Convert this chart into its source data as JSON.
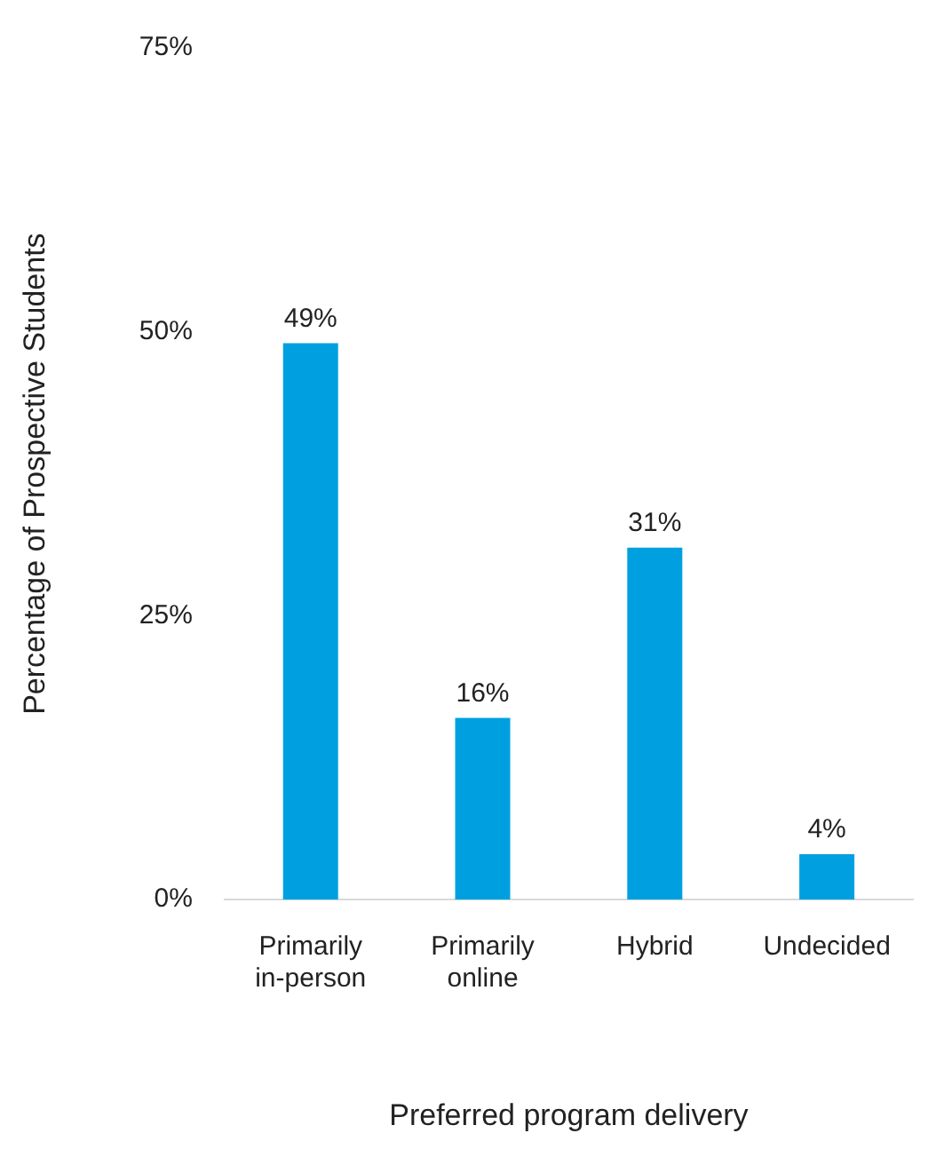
{
  "chart_data": {
    "type": "bar",
    "xlabel": "Preferred program delivery",
    "ylabel": "Percentage of Prospective Students",
    "categories": [
      "Primarily in-person",
      "Primarily online",
      "Hybrid",
      "Undecided"
    ],
    "values": [
      49,
      16,
      31,
      4
    ],
    "color": "#00a0e0",
    "value_labels": [
      "49%",
      "16%",
      "31%",
      "4%"
    ],
    "ylim": [
      0,
      75
    ],
    "yticks": [
      {
        "value": 0,
        "label": "0%"
      },
      {
        "value": 25,
        "label": "25%"
      },
      {
        "value": 50,
        "label": "50%"
      },
      {
        "value": 75,
        "label": "75%"
      }
    ],
    "grid": false,
    "legend": false
  }
}
